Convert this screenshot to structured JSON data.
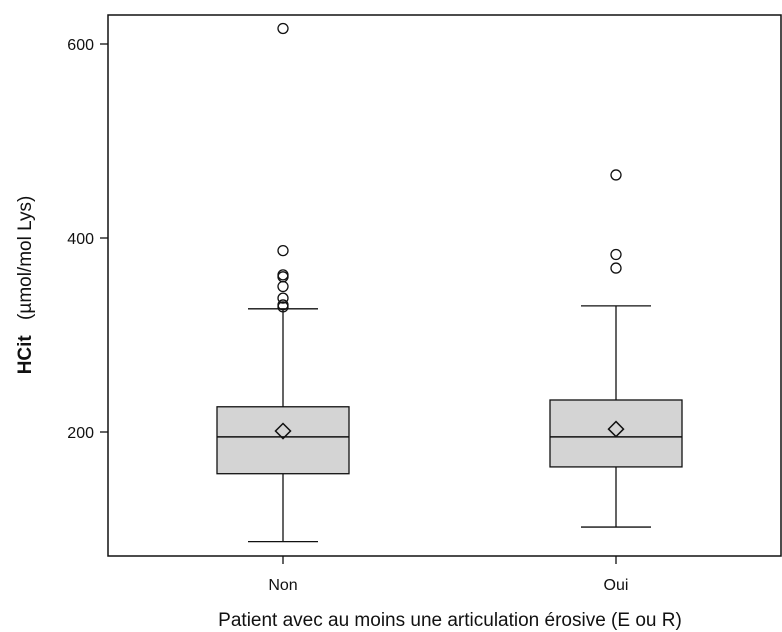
{
  "chart_data": {
    "type": "box",
    "title": "",
    "xlabel": "Patient avec au moins une articulation érosive (E ou R)",
    "ylabel_main": "HCit",
    "ylabel_unit": "(µmol/mol Lys)",
    "ylim": [
      70,
      632
    ],
    "yticks": [
      200,
      400,
      600
    ],
    "categories": [
      "Non",
      "Oui"
    ],
    "grid": false,
    "legend": "none",
    "colors": {
      "box_fill": "#d4d4d4",
      "stroke": "#111111"
    },
    "boxes": [
      {
        "category": "Non",
        "whisker_low": 87,
        "q1": 157,
        "median": 195,
        "mean": 201,
        "q3": 226,
        "whisker_high": 327,
        "outliers": [
          616,
          387,
          362,
          360,
          350,
          338,
          331,
          329
        ]
      },
      {
        "category": "Oui",
        "whisker_low": 102,
        "q1": 164,
        "median": 195,
        "mean": 203,
        "q3": 233,
        "whisker_high": 330,
        "outliers": [
          465,
          383,
          369
        ]
      }
    ]
  }
}
